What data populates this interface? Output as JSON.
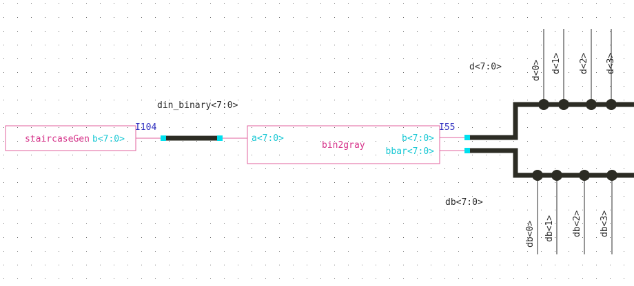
{
  "schematic": {
    "instances": [
      {
        "id": "I104",
        "cell": "staircaseGen",
        "pins": [
          "b<7:0>"
        ]
      },
      {
        "id": "I55",
        "cell": "bin2gray",
        "pins": [
          "a<7:0>",
          "b<7:0>",
          "bbar<7:0>"
        ]
      }
    ],
    "nets": {
      "din": "din_binary<7:0>",
      "d": "d<7:0>",
      "db": "db<7:0>"
    },
    "d_taps": [
      "d<0>",
      "d<1>",
      "d<2>",
      "d<3>"
    ],
    "db_taps": [
      "db<0>",
      "db<1>",
      "db<2>",
      "db<3>"
    ]
  },
  "colors": {
    "instance_box": "#e0609e",
    "cell_name": "#d6338a",
    "pin_label": "#19c8d4",
    "instance_id": "#3030c0",
    "bus": "#2c2c24",
    "pin_marker": "#00e0ee"
  }
}
